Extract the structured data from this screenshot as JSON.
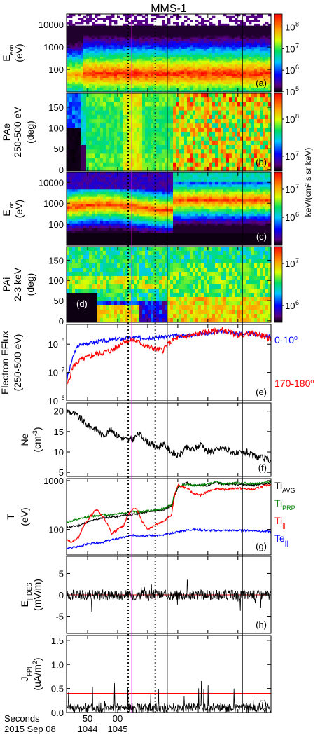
{
  "title": "MMS-1",
  "time_axis": {
    "label_line1": "Seconds",
    "label_line2": "2015 Sep 08",
    "ticks": [
      {
        "top": "50",
        "bottom": "1044"
      },
      {
        "top": "00",
        "bottom": "1045"
      }
    ],
    "tick_seconds_positions": [
      50,
      60,
      70,
      80,
      90,
      100
    ],
    "t_range_seconds": [
      43,
      111
    ]
  },
  "colors": {
    "black": "#000000",
    "red": "#ff0000",
    "green": "#008000",
    "blue": "#0000ff",
    "magenta": "#ff00ff"
  },
  "chart_data": [
    {
      "panel": "a",
      "type": "heatmap",
      "ylabel": "E",
      "ylabel_sub": "eon",
      "ylabel_unit": "(eV)",
      "yscale": "log",
      "ylim": [
        10,
        30000
      ],
      "yticks": [
        "10000",
        "1000",
        "100"
      ],
      "colorbar": {
        "ticks_base": "10",
        "ticks_exp": [
          "8",
          "7",
          "6",
          "5"
        ],
        "range_exp": [
          5,
          8.6
        ]
      },
      "panel_label": "(a)"
    },
    {
      "panel": "b",
      "type": "heatmap",
      "ylabel": "PAe",
      "ylabel2": "250-500 eV",
      "ylabel_unit": "(deg)",
      "ylim": [
        0,
        180
      ],
      "yticks": [
        "150",
        "100",
        "50",
        "0"
      ],
      "colorbar": {
        "ticks_base": "10",
        "ticks_exp": [
          "8",
          "7"
        ],
        "range_exp": [
          6.6,
          8.7
        ]
      },
      "panel_label": "(b)"
    },
    {
      "panel": "c",
      "type": "heatmap",
      "ylabel": "E",
      "ylabel_sub": "ion",
      "ylabel_unit": "(eV)",
      "yscale": "log",
      "ylim": [
        10,
        30000
      ],
      "yticks": [
        "10000",
        "1000",
        "100"
      ],
      "colorbar": {
        "ticks_base": "10",
        "ticks_exp": [
          "7",
          "6"
        ],
        "range_exp": [
          5,
          7.6
        ]
      },
      "panel_label": "(c)"
    },
    {
      "panel": "d",
      "type": "heatmap",
      "ylabel": "PAi",
      "ylabel2": "2-3 keV",
      "ylabel_unit": "(deg)",
      "ylim": [
        0,
        180
      ],
      "yticks": [
        "150",
        "100",
        "50",
        "0"
      ],
      "colorbar": {
        "ticks_base": "10",
        "ticks_exp": [
          "7",
          "6"
        ],
        "range_exp": [
          5.6,
          7.4
        ]
      },
      "panel_label": "(d)"
    },
    {
      "panel": "e",
      "type": "line",
      "ylabel": "Electron EFlux",
      "ylabel2": "(250-500 eV)",
      "yscale": "log",
      "ylim": [
        1000000,
        500000000
      ],
      "yticks": [
        {
          "base": "10",
          "exp": "8"
        },
        {
          "base": "10",
          "exp": "7"
        },
        {
          "base": "10",
          "exp": "6"
        }
      ],
      "panel_label": "(e)",
      "series": [
        {
          "name": "0-10°",
          "legend_main": "0-10",
          "legend_sup": "o",
          "color": "#0000ff",
          "x": [
            43,
            44,
            45,
            46,
            47,
            50,
            53,
            55,
            58,
            60,
            62,
            65,
            70,
            75,
            80,
            85,
            90,
            95,
            100,
            105,
            111
          ],
          "y": [
            5000000,
            12000000,
            30000000,
            60000000,
            90000000,
            110000000,
            120000000,
            130000000,
            140000000,
            150000000,
            160000000,
            170000000,
            170000000,
            180000000,
            200000000,
            210000000,
            250000000,
            280000000,
            240000000,
            230000000,
            190000000
          ]
        },
        {
          "name": "170-180°",
          "legend_main": "170-180",
          "legend_sup": "o",
          "color": "#ff0000",
          "x": [
            43,
            44,
            45,
            46,
            47,
            50,
            53,
            55,
            58,
            60,
            62,
            65,
            70,
            75,
            80,
            85,
            90,
            95,
            100,
            105,
            111
          ],
          "y": [
            3000000,
            6000000,
            15000000,
            20000000,
            25000000,
            35000000,
            45000000,
            50000000,
            60000000,
            80000000,
            130000000,
            140000000,
            80000000,
            60000000,
            170000000,
            210000000,
            270000000,
            310000000,
            210000000,
            250000000,
            150000000
          ]
        }
      ]
    },
    {
      "panel": "f",
      "type": "line",
      "ylabel": "Ne",
      "ylabel_unit": "(cm-3)",
      "ylabel_unit_main": "(cm",
      "ylabel_unit_sup": "-3",
      "ylabel_unit_end": ")",
      "ylim": [
        4,
        22
      ],
      "yticks": [
        "20",
        "15",
        "10",
        "5"
      ],
      "panel_label": "(f)",
      "series": [
        {
          "color": "#000000",
          "x": [
            43,
            45,
            47,
            50,
            53,
            55,
            58,
            60,
            63,
            65,
            67,
            70,
            73,
            75,
            78,
            80,
            83,
            85,
            88,
            90,
            93,
            95,
            98,
            100,
            103,
            105,
            108,
            111
          ],
          "y": [
            20,
            19.5,
            18.5,
            16.5,
            15.5,
            14,
            15.5,
            14,
            13,
            13,
            14.5,
            12.5,
            11,
            12,
            10,
            9,
            11,
            10.5,
            12,
            10,
            10.5,
            11,
            10,
            9.5,
            10,
            9,
            8.5,
            8
          ]
        }
      ]
    },
    {
      "panel": "g",
      "type": "line",
      "ylabel": "T",
      "ylabel_unit": "(eV)",
      "yscale": "log",
      "ylim": [
        30,
        1100
      ],
      "yticks": [
        "1000",
        "100"
      ],
      "panel_label": "(g)",
      "series": [
        {
          "name": "Ti AVG",
          "legend_main": "Ti",
          "legend_sub": "AVG",
          "color": "#000000",
          "x": [
            43,
            47,
            50,
            53,
            55,
            58,
            60,
            63,
            65,
            68,
            70,
            73,
            75,
            78,
            80,
            83,
            85,
            88,
            90,
            93,
            95,
            100,
            105,
            111
          ],
          "y": [
            110,
            120,
            140,
            160,
            170,
            180,
            180,
            200,
            200,
            220,
            230,
            240,
            250,
            300,
            700,
            900,
            800,
            800,
            800,
            900,
            850,
            850,
            800,
            900
          ]
        },
        {
          "name": "Ti PRP",
          "legend_main": "Ti",
          "legend_sub": "PRP",
          "color": "#008000",
          "x": [
            43,
            47,
            50,
            53,
            55,
            58,
            60,
            63,
            65,
            68,
            70,
            73,
            75,
            78,
            80,
            83,
            85,
            88,
            90,
            93,
            95,
            100,
            105,
            111
          ],
          "y": [
            140,
            160,
            180,
            190,
            200,
            200,
            210,
            220,
            230,
            230,
            240,
            250,
            260,
            320,
            750,
            850,
            800,
            800,
            850,
            950,
            850,
            900,
            850,
            950
          ]
        },
        {
          "name": "Ti ||",
          "legend_main": "Ti",
          "legend_sub": "||",
          "color": "#ff0000",
          "x": [
            43,
            45,
            47,
            50,
            53,
            55,
            58,
            60,
            62,
            64,
            66,
            68,
            70,
            73,
            75,
            78,
            80,
            83,
            85,
            88,
            90,
            93,
            95,
            100,
            105,
            111
          ],
          "y": [
            60,
            55,
            70,
            150,
            260,
            180,
            80,
            100,
            120,
            220,
            280,
            150,
            100,
            130,
            140,
            200,
            800,
            700,
            550,
            500,
            600,
            700,
            650,
            700,
            650,
            850
          ]
        },
        {
          "name": "Te ||",
          "legend_main": "Te",
          "legend_sub": "||",
          "color": "#0000ff",
          "x": [
            43,
            47,
            50,
            55,
            60,
            65,
            70,
            75,
            80,
            85,
            90,
            95,
            100,
            105,
            111
          ],
          "y": [
            40,
            45,
            50,
            55,
            65,
            75,
            75,
            75,
            90,
            100,
            95,
            95,
            95,
            95,
            90
          ]
        }
      ]
    },
    {
      "panel": "h",
      "type": "line",
      "ylabel": "E",
      "ylabel_sub": "|| DES",
      "ylabel_unit": "(mV/m)",
      "ylim": [
        -9,
        9
      ],
      "yticks": [
        "5",
        "0",
        "-5"
      ],
      "panel_label": "(h)",
      "reference_line": {
        "y": 0,
        "color": "#ff0000"
      },
      "series": [
        {
          "color": "#000000",
          "amplitude_typical": 1.2
        }
      ]
    },
    {
      "panel": "i",
      "type": "line",
      "ylabel": "J",
      "ylabel_sub": "FPI",
      "ylabel_unit": "(uA/m2)",
      "ylabel_unit_main": "(uA/m",
      "ylabel_unit_sup": "2",
      "ylabel_unit_end": ")",
      "ylim": [
        0,
        1.6
      ],
      "yticks": [
        "1.5",
        "1.0",
        "0.5",
        "0.0"
      ],
      "panel_label": "(i)",
      "reference_line": {
        "y": 0.4,
        "color": "#ff0000"
      },
      "series": [
        {
          "color": "#000000",
          "typical": 0.12
        }
      ]
    }
  ],
  "colorbar_title": "keV/(cm² s sr keV)",
  "vertical_markers": [
    {
      "t": 63.5,
      "style": "dotted",
      "color": "#000000"
    },
    {
      "t": 64.7,
      "style": "solid",
      "color": "#ff00ff"
    },
    {
      "t": 72.5,
      "style": "dotted",
      "color": "#000000"
    },
    {
      "t": 76.5,
      "style": "solid",
      "color": "#000000"
    },
    {
      "t": 101.5,
      "style": "solid",
      "color": "#000000"
    }
  ]
}
